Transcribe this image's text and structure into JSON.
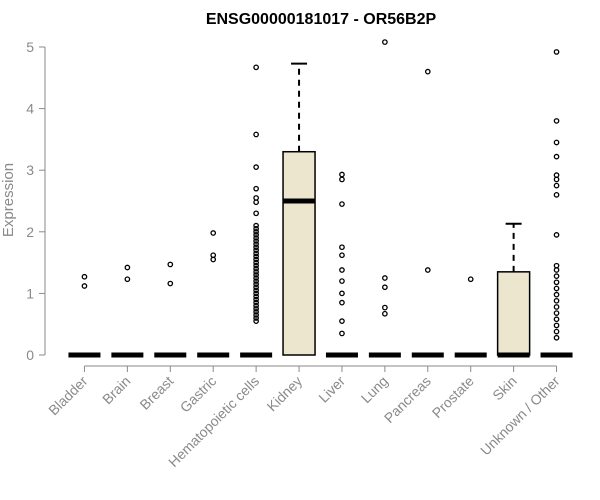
{
  "chart_data": {
    "type": "box",
    "title": "ENSG00000181017 - OR56B2P",
    "xlabel": "",
    "ylabel": "Expression",
    "ylim": [
      0,
      5.1
    ],
    "yticks": [
      0,
      1,
      2,
      3,
      4,
      5
    ],
    "grid": false,
    "colors": {
      "box_fill": "#ece6cf",
      "stroke": "#000000",
      "axis_text": "#8a8a8a"
    },
    "categories": [
      "Bladder",
      "Brain",
      "Breast",
      "Gastric",
      "Hematopoietic cells",
      "Kidney",
      "Liver",
      "Lung",
      "Pancreas",
      "Prostate",
      "Skin",
      "Unknown / Other"
    ],
    "boxes": [
      {
        "category": "Bladder",
        "q1": 0,
        "median": 0,
        "q3": 0,
        "whisker_low": 0,
        "whisker_high": 0,
        "outliers": [
          1.12,
          1.27
        ]
      },
      {
        "category": "Brain",
        "q1": 0,
        "median": 0,
        "q3": 0,
        "whisker_low": 0,
        "whisker_high": 0,
        "outliers": [
          1.23,
          1.42
        ]
      },
      {
        "category": "Breast",
        "q1": 0,
        "median": 0,
        "q3": 0,
        "whisker_low": 0,
        "whisker_high": 0,
        "outliers": [
          1.16,
          1.47
        ]
      },
      {
        "category": "Gastric",
        "q1": 0,
        "median": 0,
        "q3": 0,
        "whisker_low": 0,
        "whisker_high": 0,
        "outliers": [
          1.55,
          1.62,
          1.98
        ]
      },
      {
        "category": "Hematopoietic cells",
        "q1": 0,
        "median": 0,
        "q3": 0,
        "whisker_low": 0,
        "whisker_high": 0,
        "outliers": [
          0.55,
          0.6,
          0.65,
          0.7,
          0.75,
          0.8,
          0.85,
          0.9,
          0.95,
          1.0,
          1.05,
          1.1,
          1.15,
          1.2,
          1.25,
          1.3,
          1.35,
          1.4,
          1.45,
          1.5,
          1.55,
          1.6,
          1.65,
          1.7,
          1.75,
          1.8,
          1.85,
          1.9,
          1.95,
          2.0,
          2.05,
          2.1,
          2.3,
          2.48,
          2.55,
          2.7,
          3.05,
          3.58,
          4.67
        ]
      },
      {
        "category": "Kidney",
        "q1": 0,
        "median": 2.5,
        "q3": 3.3,
        "whisker_low": 0,
        "whisker_high": 4.73,
        "outliers": []
      },
      {
        "category": "Liver",
        "q1": 0,
        "median": 0,
        "q3": 0,
        "whisker_low": 0,
        "whisker_high": 0,
        "outliers": [
          0.35,
          0.55,
          0.85,
          1.0,
          1.2,
          1.38,
          1.62,
          1.75,
          2.45,
          2.85,
          2.93
        ]
      },
      {
        "category": "Lung",
        "q1": 0,
        "median": 0,
        "q3": 0,
        "whisker_low": 0,
        "whisker_high": 0,
        "outliers": [
          0.67,
          0.77,
          1.1,
          1.25,
          5.08
        ]
      },
      {
        "category": "Pancreas",
        "q1": 0,
        "median": 0,
        "q3": 0,
        "whisker_low": 0,
        "whisker_high": 0,
        "outliers": [
          1.38,
          4.6
        ]
      },
      {
        "category": "Prostate",
        "q1": 0,
        "median": 0,
        "q3": 0,
        "whisker_low": 0,
        "whisker_high": 0,
        "outliers": [
          1.23
        ]
      },
      {
        "category": "Skin",
        "q1": 0,
        "median": 0,
        "q3": 1.35,
        "whisker_low": 0,
        "whisker_high": 2.13,
        "outliers": []
      },
      {
        "category": "Unknown / Other",
        "q1": 0,
        "median": 0,
        "q3": 0,
        "whisker_low": 0,
        "whisker_high": 0,
        "outliers": [
          0.28,
          0.38,
          0.48,
          0.58,
          0.68,
          0.78,
          0.88,
          0.98,
          1.08,
          1.18,
          1.28,
          1.38,
          1.45,
          1.95,
          2.6,
          2.75,
          2.85,
          2.92,
          3.22,
          3.45,
          3.8,
          4.92
        ]
      }
    ]
  }
}
